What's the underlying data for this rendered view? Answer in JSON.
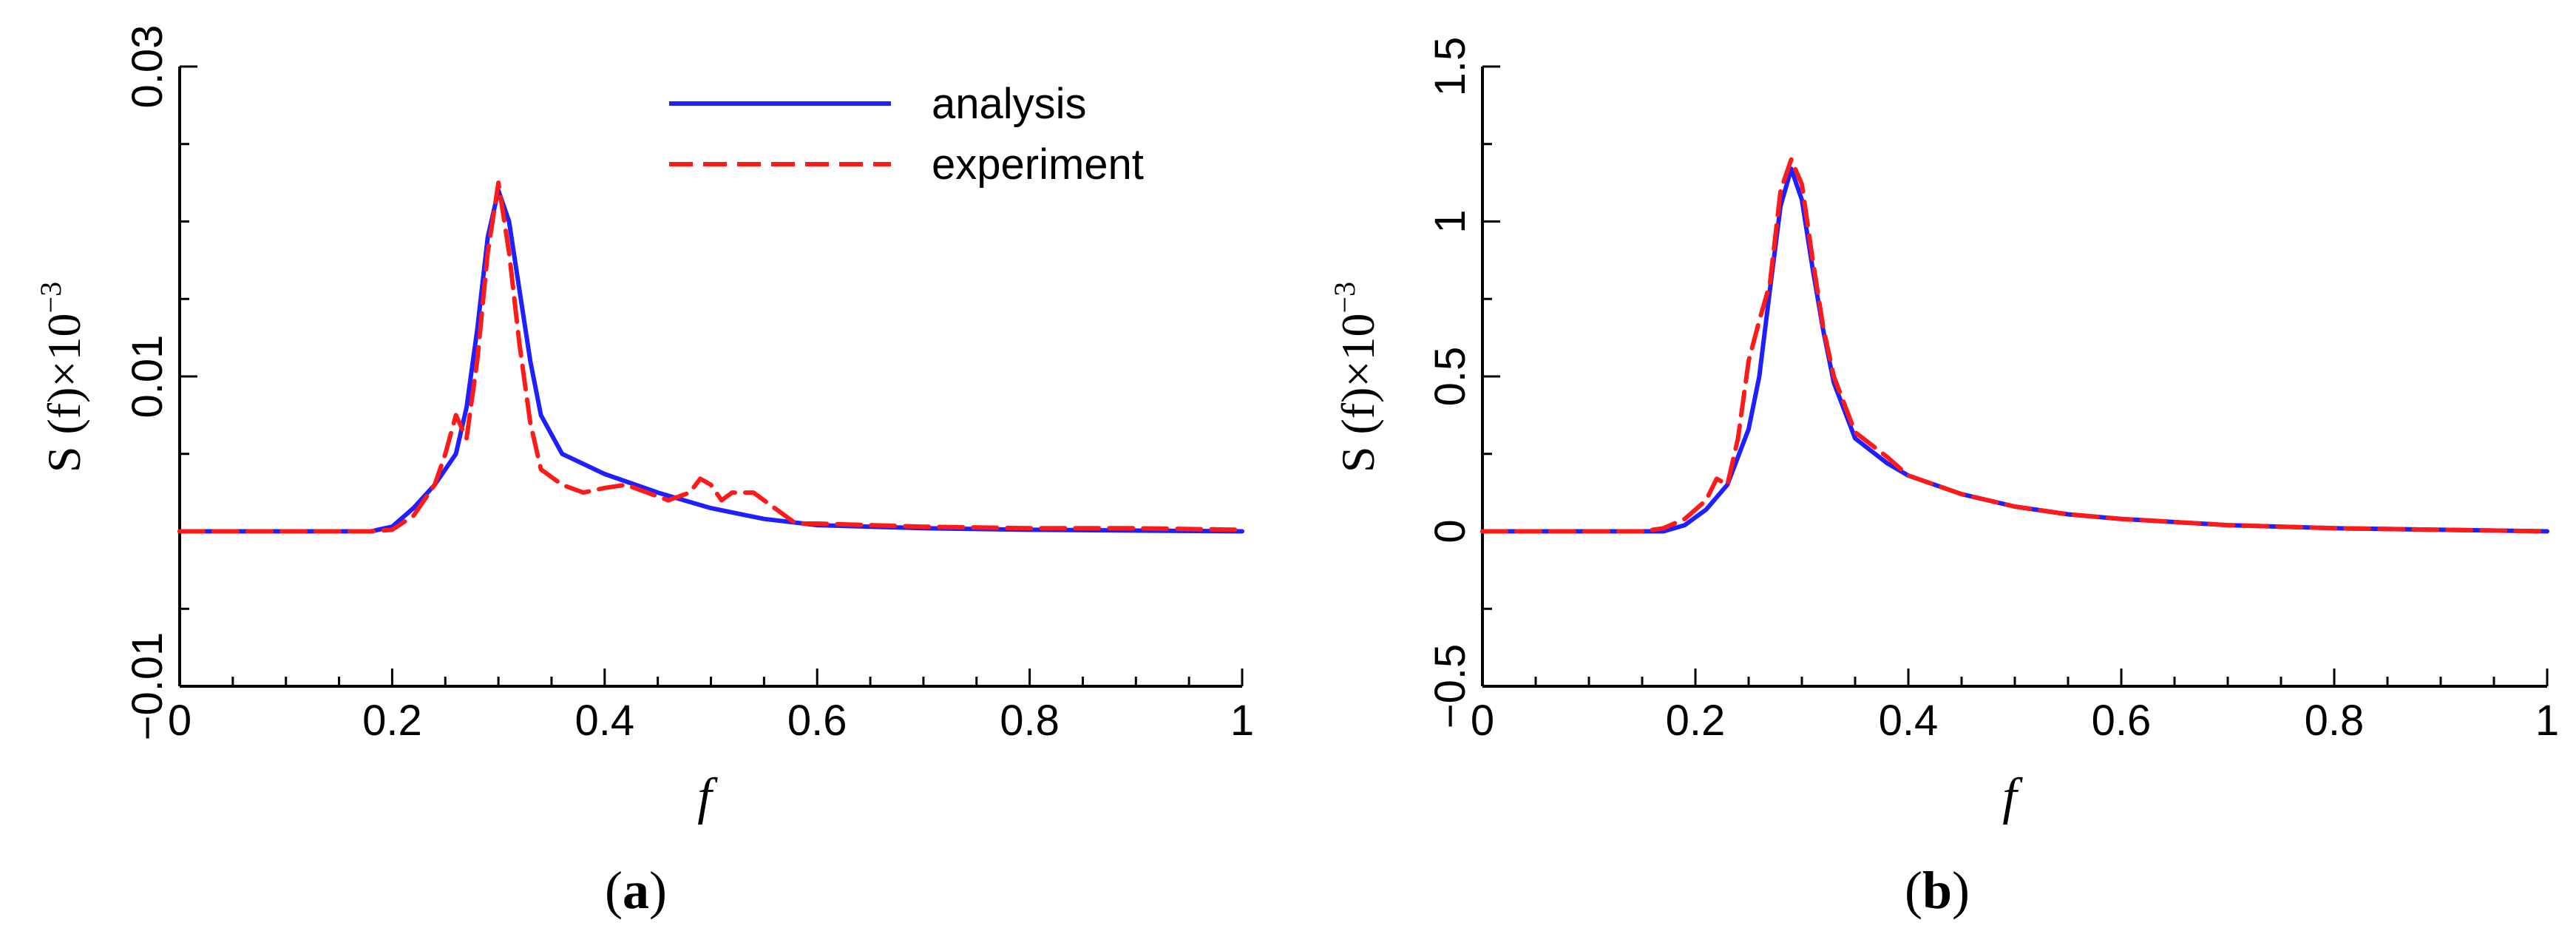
{
  "chart_data": [
    {
      "type": "line",
      "panel_label": "a",
      "xlabel": "f",
      "ylabel": {
        "main": "S (f)×10",
        "exponent": "−3"
      },
      "xlim": [
        0,
        1
      ],
      "ylim": [
        -0.01,
        0.03
      ],
      "xticks": [
        {
          "v": 0,
          "t": "0"
        },
        {
          "v": 0.2,
          "t": "0.2"
        },
        {
          "v": 0.4,
          "t": "0.4"
        },
        {
          "v": 0.6,
          "t": "0.6"
        },
        {
          "v": 0.8,
          "t": "0.8"
        },
        {
          "v": 1,
          "t": "1"
        }
      ],
      "yticks": [
        {
          "v": -0.01,
          "t": "−0.01"
        },
        {
          "v": 0.01,
          "t": "0.01"
        },
        {
          "v": 0.03,
          "t": "0.03"
        }
      ],
      "minor_x_step": 0.05,
      "minor_y_step": 0.005,
      "legend": {
        "position": "top-right",
        "entries": [
          "analysis",
          "experiment"
        ]
      },
      "series": [
        {
          "name": "analysis",
          "color": "#1f1fff",
          "dash": "solid",
          "x": [
            0,
            0.18,
            0.2,
            0.22,
            0.24,
            0.26,
            0.27,
            0.28,
            0.29,
            0.3,
            0.31,
            0.32,
            0.33,
            0.34,
            0.36,
            0.4,
            0.45,
            0.5,
            0.55,
            0.6,
            0.7,
            0.8,
            0.9,
            1
          ],
          "y": [
            0,
            0,
            0.0003,
            0.0015,
            0.003,
            0.005,
            0.008,
            0.013,
            0.019,
            0.022,
            0.02,
            0.0155,
            0.011,
            0.0075,
            0.005,
            0.0037,
            0.0025,
            0.0015,
            0.0008,
            0.0004,
            0.0002,
            0.0001,
            5e-05,
            0
          ]
        },
        {
          "name": "experiment",
          "color": "#ff1a1a",
          "dash": "dashed",
          "x": [
            0,
            0.18,
            0.2,
            0.22,
            0.24,
            0.25,
            0.26,
            0.27,
            0.28,
            0.29,
            0.3,
            0.31,
            0.32,
            0.33,
            0.34,
            0.36,
            0.38,
            0.4,
            0.42,
            0.44,
            0.46,
            0.48,
            0.49,
            0.5,
            0.51,
            0.52,
            0.54,
            0.56,
            0.58,
            0.6,
            0.7,
            0.8,
            0.9,
            1
          ],
          "y": [
            0,
            0,
            0.0001,
            0.001,
            0.003,
            0.005,
            0.0075,
            0.006,
            0.011,
            0.018,
            0.0225,
            0.018,
            0.012,
            0.007,
            0.004,
            0.003,
            0.0025,
            0.0028,
            0.003,
            0.0025,
            0.002,
            0.0025,
            0.0034,
            0.003,
            0.002,
            0.0025,
            0.0025,
            0.0015,
            0.0005,
            0.0005,
            0.0003,
            0.0002,
            0.0002,
            0.0001
          ]
        }
      ]
    },
    {
      "type": "line",
      "panel_label": "b",
      "xlabel": "f",
      "ylabel": {
        "main": "S (f)×10",
        "exponent": "−3"
      },
      "xlim": [
        0,
        1
      ],
      "ylim": [
        -0.5,
        1.5
      ],
      "xticks": [
        {
          "v": 0,
          "t": "0"
        },
        {
          "v": 0.2,
          "t": "0.2"
        },
        {
          "v": 0.4,
          "t": "0.4"
        },
        {
          "v": 0.6,
          "t": "0.6"
        },
        {
          "v": 0.8,
          "t": "0.8"
        },
        {
          "v": 1,
          "t": "1"
        }
      ],
      "yticks": [
        {
          "v": -0.5,
          "t": "−0.5"
        },
        {
          "v": 0,
          "t": "0"
        },
        {
          "v": 0.5,
          "t": "0.5"
        },
        {
          "v": 1,
          "t": "1"
        },
        {
          "v": 1.5,
          "t": "1.5"
        }
      ],
      "minor_x_step": 0.05,
      "minor_y_step": 0.25,
      "series": [
        {
          "name": "analysis",
          "color": "#1f1fff",
          "dash": "solid",
          "x": [
            0,
            0.17,
            0.19,
            0.21,
            0.23,
            0.25,
            0.26,
            0.27,
            0.28,
            0.29,
            0.3,
            0.31,
            0.32,
            0.33,
            0.35,
            0.38,
            0.4,
            0.45,
            0.5,
            0.55,
            0.6,
            0.7,
            0.8,
            0.9,
            1
          ],
          "y": [
            0,
            0,
            0.02,
            0.07,
            0.15,
            0.33,
            0.5,
            0.78,
            1.05,
            1.17,
            1.07,
            0.85,
            0.65,
            0.48,
            0.3,
            0.22,
            0.18,
            0.12,
            0.08,
            0.055,
            0.04,
            0.02,
            0.01,
            0.005,
            0
          ]
        },
        {
          "name": "experiment",
          "color": "#ff1a1a",
          "dash": "dashed",
          "x": [
            0,
            0.15,
            0.17,
            0.19,
            0.21,
            0.22,
            0.23,
            0.24,
            0.25,
            0.26,
            0.27,
            0.28,
            0.29,
            0.3,
            0.31,
            0.32,
            0.33,
            0.35,
            0.38,
            0.4,
            0.45,
            0.5,
            0.55,
            0.6,
            0.7,
            0.8,
            0.9,
            1
          ],
          "y": [
            0,
            0,
            0.01,
            0.04,
            0.1,
            0.17,
            0.15,
            0.3,
            0.55,
            0.68,
            0.8,
            1.1,
            1.2,
            1.12,
            0.88,
            0.66,
            0.5,
            0.32,
            0.24,
            0.18,
            0.12,
            0.08,
            0.055,
            0.04,
            0.02,
            0.01,
            0.005,
            0
          ]
        }
      ]
    }
  ]
}
